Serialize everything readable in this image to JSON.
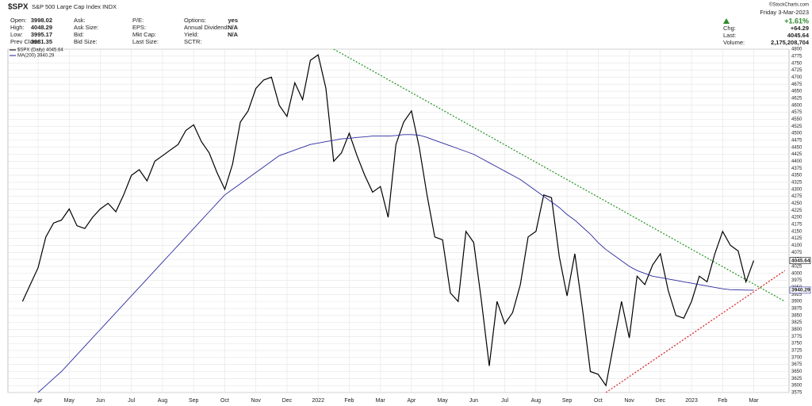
{
  "header": {
    "symbol": "$SPX",
    "name": "S&P 500 Large Cap Index INDX",
    "credit": "©StockCharts.com",
    "fields": [
      {
        "label": "Open:",
        "value": "3998.02"
      },
      {
        "label": "High:",
        "value": "4048.29"
      },
      {
        "label": "Low:",
        "value": "3995.17"
      },
      {
        "label": "Prev Close:",
        "value": "3981.35"
      },
      {
        "label": "Ask:"
      },
      {
        "label": "Ask Size:"
      },
      {
        "label": "Bid:"
      },
      {
        "label": "Bid Size:"
      },
      {
        "label": "P/E:"
      },
      {
        "label": "EPS:"
      },
      {
        "label": "Mkt Cap:"
      },
      {
        "label": "Last Size:"
      },
      {
        "label": "Options:",
        "value": "yes"
      },
      {
        "label": "Annual Dividend:",
        "value": "N/A"
      },
      {
        "label": "Yield:",
        "value": "N/A"
      },
      {
        "label": "SCTR:"
      }
    ],
    "date": "Friday 3-Mar-2023",
    "pct_change": "+1.61%",
    "quote": [
      {
        "label": "Chg:",
        "value": "+64.29"
      },
      {
        "label": "Last:",
        "value": "4045.64"
      },
      {
        "label": "Volume:",
        "value": "2,175,208,704"
      }
    ]
  },
  "chart_data": {
    "type": "line",
    "categories": [
      null,
      null,
      "Apr",
      null,
      null,
      null,
      "May",
      null,
      null,
      null,
      "Jun",
      null,
      null,
      null,
      "Jul",
      null,
      null,
      null,
      "Aug",
      null,
      null,
      null,
      "Sep",
      null,
      null,
      null,
      "Oct",
      null,
      null,
      null,
      "Nov",
      null,
      null,
      null,
      "Dec",
      null,
      null,
      null,
      "2022",
      null,
      null,
      null,
      "Feb",
      null,
      null,
      null,
      "Mar",
      null,
      null,
      null,
      "Apr",
      null,
      null,
      null,
      "May",
      null,
      null,
      null,
      "Jun",
      null,
      null,
      null,
      "Jul",
      null,
      null,
      null,
      "Aug",
      null,
      null,
      null,
      "Sep",
      null,
      null,
      null,
      "Oct",
      null,
      null,
      null,
      "Nov",
      null,
      null,
      null,
      "Dec",
      null,
      null,
      null,
      "2023",
      null,
      null,
      null,
      "Feb",
      null,
      null,
      null,
      "Mar"
    ],
    "series": [
      {
        "name": "$SPX (Daily) 4045.64",
        "color": "#000000",
        "values": [
          3900,
          3960,
          4020,
          4130,
          4180,
          4190,
          4230,
          4170,
          4160,
          4200,
          4230,
          4250,
          4220,
          4280,
          4350,
          4370,
          4330,
          4400,
          4420,
          4440,
          4460,
          4510,
          4530,
          4470,
          4430,
          4360,
          4300,
          4390,
          4540,
          4580,
          4660,
          4690,
          4700,
          4600,
          4560,
          4680,
          4620,
          4760,
          4780,
          4660,
          4400,
          4430,
          4500,
          4420,
          4350,
          4290,
          4310,
          4200,
          4460,
          4540,
          4580,
          4450,
          4280,
          4130,
          4120,
          3930,
          3900,
          4150,
          4110,
          3900,
          3670,
          3900,
          3820,
          3860,
          3960,
          4130,
          4150,
          4280,
          4270,
          4060,
          3920,
          4070,
          3870,
          3650,
          3640,
          3600,
          3750,
          3900,
          3770,
          3990,
          3960,
          4030,
          4070,
          3940,
          3850,
          3840,
          3900,
          3990,
          3970,
          4070,
          4150,
          4100,
          4080,
          3970,
          4045.64
        ]
      },
      {
        "name": "MA(200) 3940.29",
        "color": "#2a2aa0",
        "values": [
          null,
          null,
          3575,
          3600,
          3625,
          3650,
          3680,
          3710,
          3740,
          3770,
          3800,
          3830,
          3860,
          3890,
          3920,
          3950,
          3980,
          4010,
          4040,
          4070,
          4100,
          4130,
          4160,
          4190,
          4220,
          4250,
          4280,
          4300,
          4320,
          4340,
          4360,
          4380,
          4400,
          4420,
          4430,
          4440,
          4450,
          4460,
          4465,
          4470,
          4475,
          4480,
          4482,
          4485,
          4487,
          4490,
          4490,
          4490,
          4492,
          4495,
          4495,
          4493,
          4485,
          4475,
          4465,
          4455,
          4445,
          4435,
          4425,
          4410,
          4395,
          4380,
          4365,
          4350,
          4335,
          4315,
          4295,
          4275,
          4255,
          4235,
          4210,
          4190,
          4165,
          4140,
          4110,
          4085,
          4065,
          4045,
          4025,
          4010,
          4000,
          3990,
          3985,
          3980,
          3975,
          3970,
          3965,
          3960,
          3955,
          3950,
          3945,
          3942,
          3941,
          3940.5,
          3940.29
        ]
      }
    ],
    "trendlines": [
      {
        "color": "#2e9a2e",
        "x": [
          40,
          98
        ],
        "values": [
          4800,
          3900
        ]
      },
      {
        "color": "#d42a2a",
        "x": [
          75,
          98
        ],
        "values": [
          3575,
          4010
        ]
      }
    ],
    "ylim": [
      3575,
      4800
    ],
    "yticks": [
      3575,
      3600,
      3625,
      3650,
      3675,
      3700,
      3725,
      3750,
      3775,
      3800,
      3825,
      3850,
      3875,
      3900,
      3925,
      3950,
      3975,
      4000,
      4025,
      4050,
      4075,
      4100,
      4125,
      4150,
      4175,
      4200,
      4225,
      4250,
      4275,
      4300,
      4325,
      4350,
      4375,
      4400,
      4425,
      4450,
      4475,
      4500,
      4525,
      4550,
      4575,
      4600,
      4625,
      4650,
      4675,
      4700,
      4725,
      4750,
      4775,
      4800
    ],
    "grid": true
  }
}
